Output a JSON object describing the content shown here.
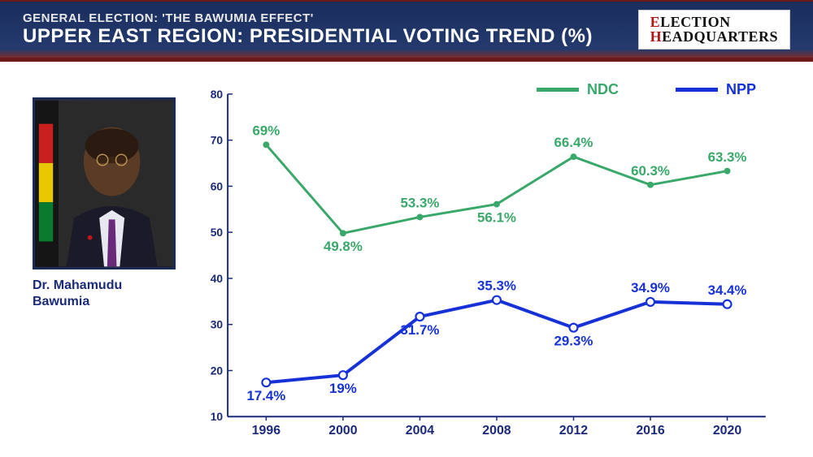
{
  "header": {
    "subtitle": "GENERAL ELECTION: 'THE BAWUMIA EFFECT'",
    "title": "UPPER EAST REGION: PRESIDENTIAL VOTING TREND (%)",
    "logo_line1_red": "E",
    "logo_line1_rest": "LECTION",
    "logo_line2_red": "H",
    "logo_line2_rest": "EADQUARTERS"
  },
  "photo": {
    "caption_line1": "Dr. Mahamudu",
    "caption_line2": "Bawumia"
  },
  "chart": {
    "type": "line",
    "x_categories": [
      "1996",
      "2000",
      "2004",
      "2008",
      "2012",
      "2016",
      "2020"
    ],
    "y_ticks": [
      10,
      20,
      30,
      40,
      50,
      60,
      70,
      80
    ],
    "ylim": [
      10,
      80
    ],
    "series": [
      {
        "name": "NDC",
        "color": "#39a86a",
        "line_width": 3,
        "marker": "circle",
        "marker_size": 4,
        "values": [
          69,
          49.8,
          53.3,
          56.1,
          66.4,
          60.3,
          63.3
        ],
        "labels": [
          "69%",
          "49.8%",
          "53.3%",
          "56.1%",
          "66.4%",
          "60.3%",
          "63.3%"
        ],
        "label_pos": [
          "above",
          "below",
          "above",
          "below",
          "above",
          "above",
          "above"
        ]
      },
      {
        "name": "NPP",
        "color": "#1632d6",
        "line_width": 4,
        "marker": "circle-open",
        "marker_size": 5,
        "values": [
          17.4,
          19,
          31.7,
          35.3,
          29.3,
          34.9,
          34.4
        ],
        "labels": [
          "17.4%",
          "19%",
          "31.7%",
          "35.3%",
          "29.3%",
          "34.9%",
          "34.4%"
        ],
        "label_pos": [
          "below",
          "below",
          "below",
          "above",
          "below",
          "above",
          "above"
        ]
      }
    ],
    "axis_color": "#1b2b7a",
    "axis_label_fontsize": 14,
    "data_label_fontsize": 17,
    "background_color": "#ffffff",
    "grid": false
  },
  "colors": {
    "header_bg": "#243a6e",
    "header_border": "#6b1a1a",
    "caption": "#1b2b7a"
  }
}
